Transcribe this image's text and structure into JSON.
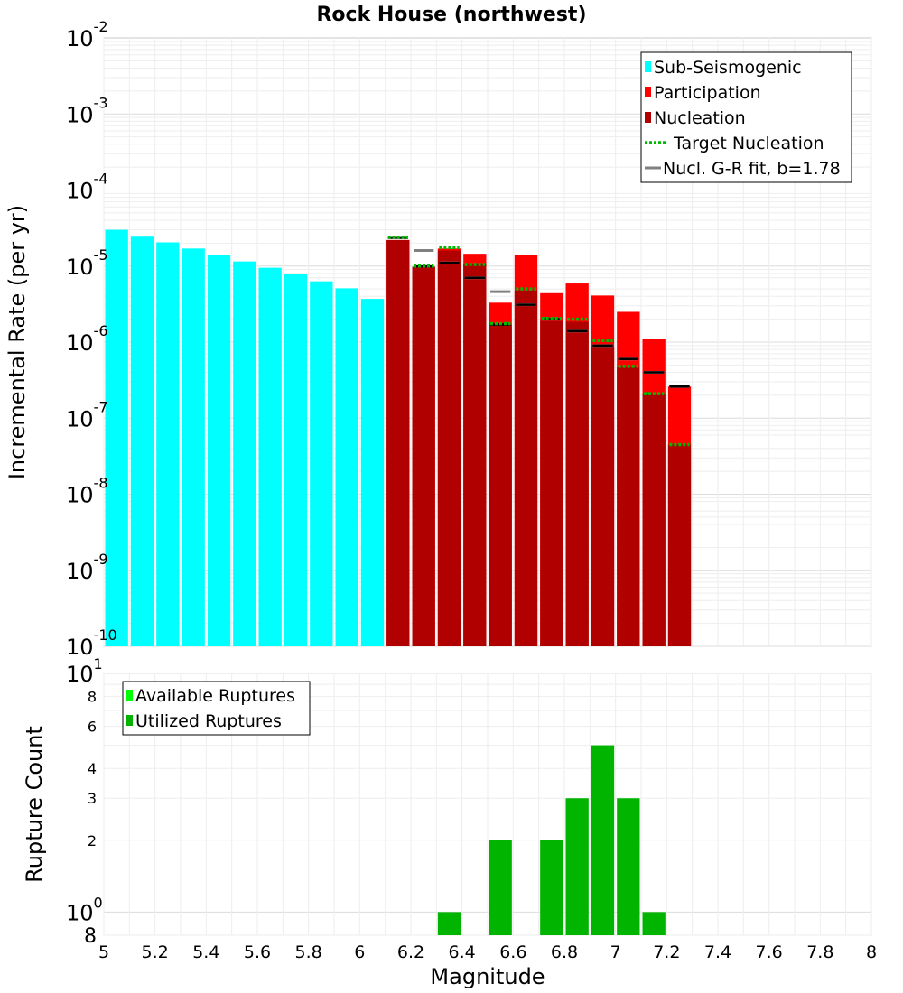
{
  "chart_data": [
    {
      "type": "bar",
      "title": "Rock House (northwest)",
      "xlabel": "",
      "ylabel": "Incremental Rate (per yr)",
      "y_scale": "log",
      "xlim": [
        5,
        8
      ],
      "ylim": [
        1e-10,
        0.01
      ],
      "y_tick_labels": [
        {
          "base": "10",
          "exp": "-2",
          "value": 0.01
        },
        {
          "base": "10",
          "exp": "-3",
          "value": 0.001
        },
        {
          "base": "10",
          "exp": "-4",
          "value": 0.0001
        },
        {
          "base": "10",
          "exp": "-5",
          "value": 1e-05
        },
        {
          "base": "10",
          "exp": "-6",
          "value": 1e-06
        },
        {
          "base": "10",
          "exp": "-7",
          "value": 1e-07
        },
        {
          "base": "10",
          "exp": "-8",
          "value": 1e-08
        },
        {
          "base": "10",
          "exp": "-9",
          "value": 1e-09
        },
        {
          "base": "10",
          "exp": "-10",
          "value": 1e-10
        }
      ],
      "bin_width": 0.1,
      "grid": true,
      "legend_position": "top-right",
      "legend": [
        {
          "label": "Sub-Seismogenic",
          "color": "#00ffff",
          "kind": "bar"
        },
        {
          "label": "Participation",
          "color": "#ff0000",
          "kind": "bar"
        },
        {
          "label": "Nucleation",
          "color": "#b00000",
          "kind": "bar"
        },
        {
          "label": "Target Nucleation",
          "color": "#00bb00",
          "kind": "dotted"
        },
        {
          "label": "Nucl. G-R fit, b=1.78",
          "color": "#808080",
          "kind": "line"
        }
      ],
      "series": [
        {
          "name": "Sub-Seismogenic",
          "color": "#00ffff",
          "x": [
            5.05,
            5.15,
            5.25,
            5.35,
            5.45,
            5.55,
            5.65,
            5.75,
            5.85,
            5.95,
            6.05
          ],
          "values": [
            3e-05,
            2.5e-05,
            2.05e-05,
            1.7e-05,
            1.4e-05,
            1.15e-05,
            9.5e-06,
            7.8e-06,
            6.3e-06,
            5.1e-06,
            3.7e-06
          ]
        },
        {
          "name": "Participation",
          "color": "#ff0000",
          "x": [
            6.15,
            6.25,
            6.35,
            6.45,
            6.55,
            6.65,
            6.75,
            6.85,
            6.95,
            7.05,
            7.15,
            7.25
          ],
          "values": [
            2.2e-05,
            9.8e-06,
            1.7e-05,
            1.45e-05,
            3.3e-06,
            1.4e-05,
            4.4e-06,
            5.9e-06,
            4.1e-06,
            2.5e-06,
            1.1e-06,
            2.6e-07
          ]
        },
        {
          "name": "Nucleation",
          "color": "#b00000",
          "x": [
            6.15,
            6.25,
            6.35,
            6.45,
            6.55,
            6.65,
            6.75,
            6.85,
            6.95,
            7.05,
            7.15,
            7.25
          ],
          "values": [
            2.2e-05,
            9.8e-06,
            1.6e-05,
            1.05e-05,
            1.7e-06,
            4.8e-06,
            1.9e-06,
            1.85e-06,
            8.8e-07,
            4.8e-07,
            2.1e-07,
            4.5e-08
          ]
        },
        {
          "name": "Target Nucleation",
          "color": "#00bb00",
          "x": [
            6.15,
            6.25,
            6.35,
            6.45,
            6.55,
            6.65,
            6.75,
            6.85,
            6.95,
            7.05,
            7.15,
            7.25
          ],
          "values": [
            2.4e-05,
            1e-05,
            1.75e-05,
            1.05e-05,
            1.75e-06,
            5e-06,
            2.05e-06,
            2e-06,
            1.05e-06,
            4.8e-07,
            2.1e-07,
            4.5e-08
          ]
        },
        {
          "name": "Nucl. G-R fit, b=1.78",
          "color": "#808080",
          "x": [
            6.15,
            6.25,
            6.35,
            6.45,
            6.55,
            6.65,
            6.75,
            6.85,
            6.95,
            7.05,
            7.15,
            7.25
          ],
          "values": [
            2.4e-05,
            1.6e-05,
            1.1e-05,
            7e-06,
            4.6e-06,
            3.1e-06,
            2e-06,
            1.4e-06,
            9e-07,
            6e-07,
            4e-07,
            2.6e-07
          ]
        },
        {
          "name": "",
          "color": "#000000",
          "x": [
            6.15,
            6.25,
            6.35,
            6.45,
            6.55,
            6.65,
            6.75,
            6.85,
            6.95,
            7.05,
            7.15,
            7.25
          ],
          "values": [
            2.35e-05,
            9.9e-06,
            1.1e-05,
            7e-06,
            1.7e-06,
            3.1e-06,
            2e-06,
            1.4e-06,
            9e-07,
            6e-07,
            4e-07,
            2.6e-07
          ]
        }
      ]
    },
    {
      "type": "bar",
      "title": "",
      "xlabel": "Magnitude",
      "ylabel": "Rupture Count",
      "y_scale": "log",
      "xlim": [
        5,
        8
      ],
      "ylim": [
        0.8,
        10
      ],
      "x_ticks": [
        "5",
        "5.2",
        "5.4",
        "5.6",
        "5.8",
        "6",
        "6.2",
        "6.4",
        "6.6",
        "6.8",
        "7",
        "7.2",
        "7.4",
        "7.6",
        "7.8",
        "8"
      ],
      "y_tick_labels": [
        {
          "base": "10",
          "exp": "1",
          "value": 10
        },
        {
          "base": "10",
          "exp": "0",
          "value": 1
        }
      ],
      "y_minor_tick_labels": [
        {
          "label": "8",
          "value": 8
        },
        {
          "label": "6",
          "value": 6
        },
        {
          "label": "4",
          "value": 4
        },
        {
          "label": "3",
          "value": 3
        },
        {
          "label": "2",
          "value": 2
        },
        {
          "label": "8",
          "value": 0.8
        }
      ],
      "bin_width": 0.1,
      "grid": true,
      "legend_position": "top-left",
      "legend": [
        {
          "label": "Available Ruptures",
          "color": "#00ff00",
          "kind": "bar"
        },
        {
          "label": "Utilized Ruptures",
          "color": "#00b400",
          "kind": "bar"
        }
      ],
      "series": [
        {
          "name": "Utilized Ruptures",
          "color": "#00b400",
          "x": [
            6.35,
            6.55,
            6.75,
            6.85,
            6.95,
            7.05,
            7.15
          ],
          "values": [
            1,
            2,
            2,
            3,
            5,
            3,
            1
          ]
        }
      ]
    }
  ]
}
